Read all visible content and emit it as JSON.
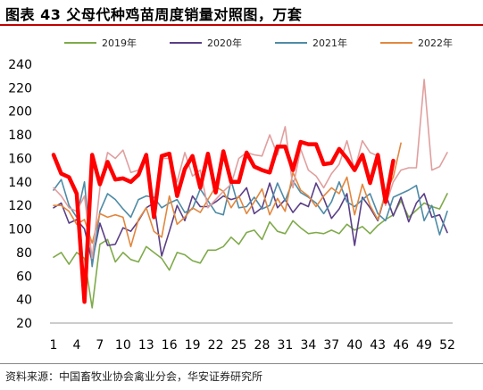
{
  "title": "图表 43 父母代种鸡苗周度销量对照图，万套",
  "source": "资料来源：中国畜牧业协会禽业分会，华安证券研究所",
  "chart_data": {
    "type": "line",
    "title": "图表 43 父母代种鸡苗周度销量对照图，万套",
    "xlabel": "",
    "ylabel": "",
    "ylim": [
      20,
      240
    ],
    "yticks": [
      20,
      40,
      60,
      80,
      100,
      120,
      140,
      160,
      180,
      200,
      220,
      240
    ],
    "xlim": [
      1,
      52
    ],
    "xticks": [
      1,
      4,
      7,
      10,
      13,
      16,
      19,
      22,
      25,
      28,
      31,
      34,
      37,
      40,
      43,
      46,
      49,
      52
    ],
    "legend_position": "top",
    "grid": false,
    "series": [
      {
        "name": "2019年",
        "color": "#7faa4a",
        "width": 1.6,
        "x": [
          1,
          2,
          3,
          4,
          5,
          6,
          7,
          8,
          9,
          10,
          11,
          12,
          13,
          14,
          15,
          16,
          17,
          18,
          19,
          20,
          21,
          22,
          23,
          24,
          25,
          26,
          27,
          28,
          29,
          30,
          31,
          32,
          33,
          34,
          35,
          36,
          37,
          38,
          39,
          40,
          41,
          42,
          43,
          44,
          45,
          46,
          47,
          48,
          49,
          50,
          51,
          52
        ],
        "values": [
          76,
          80,
          70,
          80,
          75,
          33,
          87,
          91,
          72,
          80,
          74,
          72,
          85,
          80,
          75,
          65,
          80,
          78,
          73,
          71,
          82,
          82,
          85,
          93,
          87,
          97,
          99,
          91,
          106,
          98,
          96,
          107,
          101,
          96,
          97,
          96,
          99,
          96,
          104,
          99,
          102,
          96,
          103,
          108,
          112,
          124,
          110,
          116,
          122,
          119,
          117,
          130
        ]
      },
      {
        "name": "2020年",
        "color": "#5b3f87",
        "width": 1.6,
        "x": [
          1,
          2,
          3,
          4,
          5,
          6,
          7,
          8,
          9,
          10,
          11,
          12,
          13,
          14,
          15,
          16,
          17,
          18,
          19,
          20,
          21,
          22,
          23,
          24,
          25,
          26,
          27,
          28,
          29,
          30,
          31,
          32,
          33,
          34,
          35,
          36,
          37,
          38,
          39,
          40,
          41,
          42,
          43,
          44,
          45,
          46,
          47,
          48,
          49,
          50,
          51,
          52
        ],
        "values": [
          118,
          122,
          105,
          108,
          100,
          72,
          105,
          86,
          87,
          101,
          98,
          107,
          118,
          122,
          77,
          98,
          120,
          107,
          128,
          119,
          119,
          123,
          128,
          125,
          127,
          135,
          113,
          118,
          139,
          118,
          125,
          114,
          122,
          119,
          139,
          126,
          109,
          117,
          130,
          86,
          127,
          118,
          107,
          130,
          111,
          127,
          106,
          122,
          130,
          110,
          112,
          97
        ]
      },
      {
        "name": "2021年",
        "color": "#4e8ba6",
        "width": 1.6,
        "x": [
          1,
          2,
          3,
          4,
          5,
          6,
          7,
          8,
          9,
          10,
          11,
          12,
          13,
          14,
          15,
          16,
          17,
          18,
          19,
          20,
          21,
          22,
          23,
          24,
          25,
          26,
          27,
          28,
          29,
          30,
          31,
          32,
          33,
          34,
          35,
          36,
          37,
          38,
          39,
          40,
          41,
          42,
          43,
          44,
          45,
          46,
          47,
          48,
          49,
          50,
          51,
          52
        ],
        "values": [
          133,
          142,
          120,
          110,
          140,
          68,
          115,
          130,
          125,
          117,
          110,
          125,
          128,
          127,
          118,
          122,
          125,
          114,
          117,
          134,
          124,
          114,
          112,
          141,
          118,
          119,
          127,
          117,
          120,
          139,
          124,
          141,
          131,
          127,
          122,
          113,
          123,
          140,
          123,
          119,
          125,
          130,
          113,
          107,
          127,
          130,
          133,
          137,
          107,
          120,
          95,
          115
        ]
      },
      {
        "name": "2022年",
        "color": "#e2873f",
        "width": 1.6,
        "x": [
          1,
          2,
          3,
          4,
          5,
          6,
          7,
          8,
          9,
          10,
          11,
          12,
          13,
          14,
          15,
          16,
          17,
          18,
          19,
          20,
          21,
          22,
          23,
          24,
          25,
          26,
          27,
          28,
          29,
          30,
          31,
          32,
          33,
          34,
          35,
          36,
          37,
          38,
          39,
          40,
          41,
          42,
          43,
          44,
          45,
          46
        ],
        "values": [
          120,
          120,
          115,
          104,
          108,
          88,
          113,
          110,
          112,
          110,
          85,
          108,
          118,
          98,
          93,
          128,
          104,
          110,
          118,
          114,
          125,
          136,
          132,
          118,
          128,
          113,
          123,
          134,
          112,
          126,
          115,
          148,
          133,
          128,
          119,
          128,
          135,
          130,
          144,
          112,
          138,
          120,
          108,
          131,
          144,
          173
        ]
      },
      {
        "name": "",
        "color": "#e09f9f",
        "width": 1.6,
        "x": [
          1,
          2,
          3,
          4,
          5,
          6,
          7,
          8,
          9,
          10,
          11,
          12,
          13,
          14,
          15,
          16,
          17,
          18,
          19,
          20,
          21,
          22,
          23,
          24,
          25,
          26,
          27,
          28,
          29,
          30,
          31,
          32,
          33,
          34,
          35,
          36,
          37,
          38,
          39,
          40,
          41,
          42,
          43,
          44,
          45,
          46,
          47,
          48,
          49,
          50,
          51,
          52
        ],
        "values": [
          135,
          128,
          118,
          115,
          128,
          75,
          135,
          165,
          160,
          167,
          148,
          150,
          164,
          115,
          160,
          160,
          140,
          165,
          145,
          150,
          118,
          125,
          132,
          138,
          160,
          165,
          163,
          162,
          180,
          163,
          187,
          135,
          168,
          150,
          145,
          135,
          147,
          155,
          175,
          150,
          175,
          165,
          162,
          120,
          140,
          150,
          152,
          152,
          227,
          150,
          153,
          165
        ]
      },
      {
        "name": "",
        "color": "#ff0000",
        "width": 4.5,
        "x": [
          1,
          2,
          3,
          4,
          5,
          6,
          7,
          8,
          9,
          10,
          11,
          12,
          13,
          14,
          15,
          16,
          17,
          18,
          19,
          20,
          21,
          22,
          23,
          24,
          25,
          26,
          27,
          28,
          29,
          30,
          31,
          32,
          33,
          34,
          35,
          36,
          37,
          38,
          39,
          40,
          41,
          42,
          43,
          44,
          45
        ],
        "values": [
          163,
          147,
          144,
          130,
          38,
          163,
          138,
          157,
          142,
          143,
          140,
          146,
          163,
          110,
          162,
          164,
          128,
          151,
          162,
          135,
          164,
          131,
          166,
          140,
          140,
          165,
          153,
          150,
          148,
          170,
          170,
          150,
          174,
          172,
          172,
          155,
          156,
          168,
          160,
          150,
          163,
          139,
          163,
          123,
          158
        ]
      }
    ]
  }
}
